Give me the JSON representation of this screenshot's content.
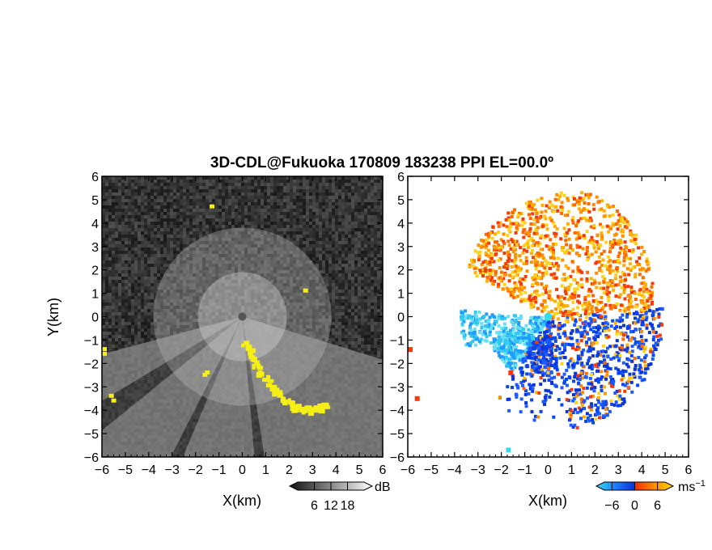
{
  "title": "3D-CDL@Fukuoka 170809 183238 PPI EL=00.0º",
  "colors": {
    "background": "#ffffff",
    "left_panel_background": "#333333",
    "yellow_overlay": "#f5ef16",
    "negative_velocity": "#0a46f0",
    "positive_velocity": "#f53a0a",
    "cyan": "#33ddee"
  },
  "chart_data": [
    {
      "type": "heatmap",
      "name": "left-panel",
      "xlabel": "X(km)",
      "ylabel": "Y(km)",
      "xlim": [
        -6,
        6
      ],
      "ylim": [
        -6,
        6
      ],
      "x_ticks": [
        "−6",
        "−5",
        "−4",
        "−3",
        "−2",
        "−1",
        "0",
        "1",
        "2",
        "3",
        "4",
        "5",
        "6"
      ],
      "y_ticks": [
        "6",
        "5",
        "4",
        "3",
        "2",
        "1",
        "0",
        "−1",
        "−2",
        "−3",
        "−4",
        "−5",
        "−6"
      ],
      "colorbar": {
        "unit": "dB",
        "ticks": [
          "6",
          "12",
          "18"
        ],
        "range": [
          0,
          24
        ]
      },
      "radar_center": [
        0,
        0
      ],
      "bright_sector_deg": [
        195,
        340
      ],
      "yellow_band_points": [
        [
          0,
          -1
        ],
        [
          0.6,
          -2.2
        ],
        [
          1.4,
          -3.2
        ],
        [
          2.2,
          -3.8
        ],
        [
          3.0,
          -3.9
        ],
        [
          3.6,
          -3.7
        ]
      ]
    },
    {
      "type": "heatmap",
      "name": "right-panel",
      "xlabel": "X(km)",
      "xlim": [
        -6,
        6
      ],
      "ylim": [
        -6,
        6
      ],
      "x_ticks": [
        "−6",
        "−5",
        "−4",
        "−3",
        "−2",
        "−1",
        "0",
        "1",
        "2",
        "3",
        "4",
        "5",
        "6"
      ],
      "y_ticks": [
        "6",
        "5",
        "4",
        "3",
        "2",
        "1",
        "0",
        "−1",
        "−2",
        "−3",
        "−4",
        "−5",
        "−6"
      ],
      "colorbar": {
        "unit": "ms",
        "unit_exponent": "−1",
        "ticks": [
          "−6",
          "0",
          "6"
        ],
        "range": [
          -8,
          8
        ]
      },
      "radar_center": [
        0,
        0
      ],
      "regions": [
        {
          "label": "positive",
          "center": [
            1.2,
            3.5
          ]
        },
        {
          "label": "negative",
          "center": [
            2.0,
            -1.0
          ]
        },
        {
          "label": "negative",
          "center": [
            -3.0,
            -0.8
          ]
        }
      ]
    }
  ]
}
